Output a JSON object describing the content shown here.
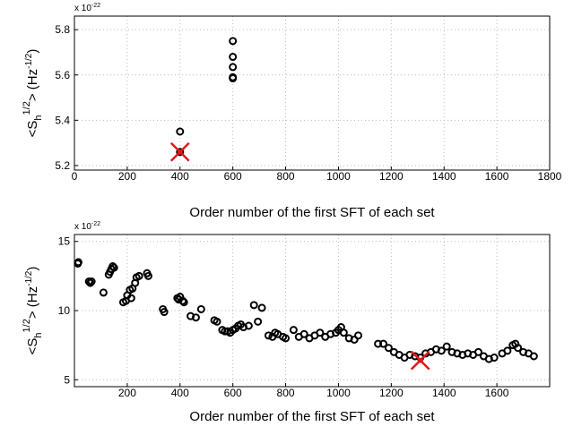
{
  "chart_data": [
    {
      "type": "scatter",
      "xlabel": "Order number of the first SFT of each set",
      "ylabel_parts": [
        "<S",
        "h",
        "1/2",
        "> (Hz",
        "-1/2",
        ")"
      ],
      "y_multiplier": {
        "base": "x 10",
        "exponent": "-22"
      },
      "xlim": [
        0,
        1800
      ],
      "xticks": [
        0,
        200,
        400,
        600,
        800,
        1000,
        1200,
        1400,
        1600,
        1800
      ],
      "ylim": [
        5.18,
        5.86
      ],
      "yticks": [
        5.2,
        5.4,
        5.6,
        5.8
      ],
      "grid": true,
      "points": {
        "color": "#000000",
        "x": [
          400,
          400,
          600,
          600,
          600,
          600,
          600
        ],
        "y": [
          5.35,
          5.26,
          5.75,
          5.68,
          5.635,
          5.59,
          5.585
        ]
      },
      "highlight": {
        "color": "#e0191d",
        "x": [
          400
        ],
        "y": [
          5.26
        ]
      }
    },
    {
      "type": "scatter",
      "xlabel": "Order number of the first SFT of each set",
      "ylabel_parts": [
        "<S",
        "h",
        "1/2",
        "> (Hz",
        "-1/2",
        ")"
      ],
      "y_multiplier": {
        "base": "x 10",
        "exponent": "-22"
      },
      "xlim": [
        0,
        1800
      ],
      "xticks": [
        200,
        400,
        600,
        800,
        1000,
        1200,
        1400,
        1600
      ],
      "ylim": [
        4.5,
        15.5
      ],
      "yticks": [
        5,
        10,
        15
      ],
      "grid": true,
      "points": {
        "color": "#000000",
        "x": [
          13,
          15,
          55,
          60,
          65,
          110,
          130,
          135,
          140,
          145,
          150,
          185,
          195,
          200,
          210,
          215,
          220,
          230,
          235,
          245,
          275,
          280,
          335,
          340,
          390,
          395,
          400,
          410,
          415,
          440,
          460,
          480,
          530,
          540,
          560,
          570,
          580,
          590,
          600,
          610,
          620,
          630,
          640,
          660,
          680,
          695,
          710,
          735,
          750,
          760,
          770,
          790,
          800,
          830,
          850,
          870,
          890,
          910,
          930,
          950,
          970,
          990,
          1000,
          1010,
          1020,
          1040,
          1060,
          1075,
          1150,
          1170,
          1190,
          1210,
          1230,
          1250,
          1270,
          1290,
          1310,
          1330,
          1350,
          1370,
          1390,
          1410,
          1430,
          1450,
          1470,
          1490,
          1510,
          1530,
          1550,
          1570,
          1590,
          1620,
          1640,
          1660,
          1670,
          1680,
          1700,
          1720,
          1740
        ],
        "y": [
          13.4,
          13.5,
          12.1,
          12.0,
          12.1,
          11.3,
          12.6,
          12.8,
          13.0,
          13.2,
          13.1,
          10.6,
          10.7,
          11.1,
          11.5,
          10.9,
          11.6,
          12.0,
          12.4,
          12.5,
          12.7,
          12.5,
          10.1,
          9.9,
          10.9,
          10.8,
          11.0,
          10.7,
          10.6,
          9.6,
          9.5,
          10.1,
          9.3,
          9.2,
          8.6,
          8.5,
          8.5,
          8.4,
          8.6,
          8.7,
          8.9,
          9.0,
          8.8,
          8.9,
          10.4,
          9.2,
          10.2,
          8.2,
          8.1,
          8.4,
          8.3,
          8.1,
          8.0,
          8.6,
          8.1,
          8.3,
          8.0,
          8.2,
          8.4,
          8.1,
          8.3,
          8.4,
          8.6,
          8.8,
          8.4,
          8.0,
          7.9,
          8.2,
          7.6,
          7.6,
          7.3,
          7.0,
          6.8,
          6.6,
          6.8,
          6.7,
          6.6,
          6.9,
          7.0,
          7.2,
          7.1,
          7.4,
          7.0,
          6.9,
          6.8,
          6.9,
          6.8,
          7.0,
          6.7,
          6.5,
          6.6,
          6.9,
          7.1,
          7.5,
          7.6,
          7.3,
          7.0,
          6.9,
          6.7
        ]
      },
      "highlight": {
        "color": "#e0191d",
        "x": [
          1310
        ],
        "y": [
          6.4
        ]
      }
    }
  ]
}
